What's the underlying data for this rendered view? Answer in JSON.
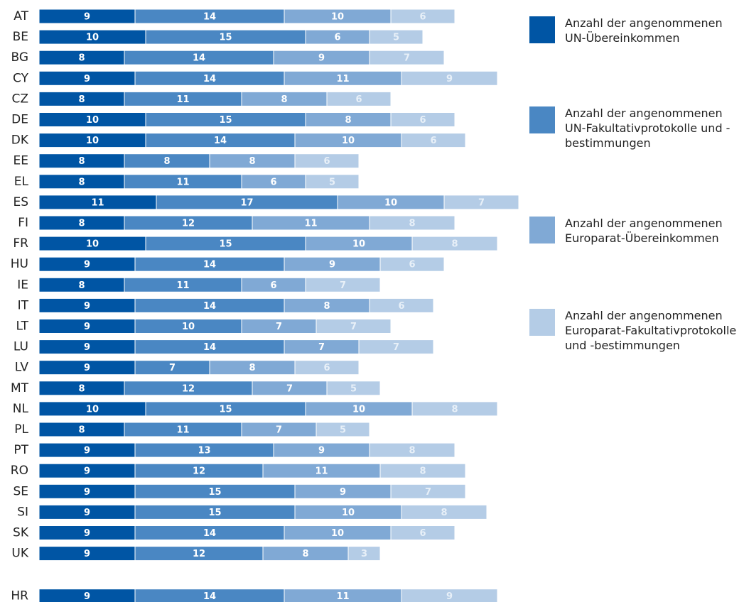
{
  "chart_data": {
    "type": "stacked-bar-horizontal",
    "categories": [
      "AT",
      "BE",
      "BG",
      "CY",
      "CZ",
      "DE",
      "DK",
      "EE",
      "EL",
      "ES",
      "FI",
      "FR",
      "HU",
      "IE",
      "IT",
      "LT",
      "LU",
      "LV",
      "MT",
      "NL",
      "PL",
      "PT",
      "RO",
      "SE",
      "SI",
      "SK",
      "UK",
      "HR"
    ],
    "series": [
      {
        "name": "Anzahl der angenommenen UN-Übereinkommen",
        "color": "#0055a4",
        "values": [
          9,
          10,
          8,
          9,
          8,
          10,
          10,
          8,
          8,
          11,
          8,
          10,
          9,
          8,
          9,
          9,
          9,
          9,
          8,
          10,
          8,
          9,
          9,
          9,
          9,
          9,
          9,
          9
        ]
      },
      {
        "name": "Anzahl der angenommenen UN-Fakultativprotokolle und -bestimmungen",
        "color": "#4a87c3",
        "values": [
          14,
          15,
          14,
          14,
          11,
          15,
          14,
          8,
          11,
          17,
          12,
          15,
          14,
          11,
          14,
          10,
          14,
          7,
          12,
          15,
          11,
          13,
          12,
          15,
          15,
          14,
          12,
          14
        ]
      },
      {
        "name": "Anzahl der angenommenen Europarat-Übereinkommen",
        "color": "#80a9d5",
        "values": [
          10,
          6,
          9,
          11,
          8,
          8,
          10,
          8,
          6,
          10,
          11,
          10,
          9,
          6,
          8,
          7,
          7,
          8,
          7,
          10,
          7,
          9,
          11,
          9,
          10,
          10,
          8,
          11
        ]
      },
      {
        "name": "Anzahl der angenommenen Europarat-Fakultativprotokolle und -bestimmungen",
        "color": "#b4cce6",
        "values": [
          6,
          5,
          7,
          9,
          6,
          6,
          6,
          6,
          5,
          7,
          8,
          8,
          6,
          7,
          6,
          7,
          7,
          6,
          5,
          8,
          5,
          8,
          8,
          7,
          8,
          6,
          3,
          9
        ]
      }
    ]
  }
}
